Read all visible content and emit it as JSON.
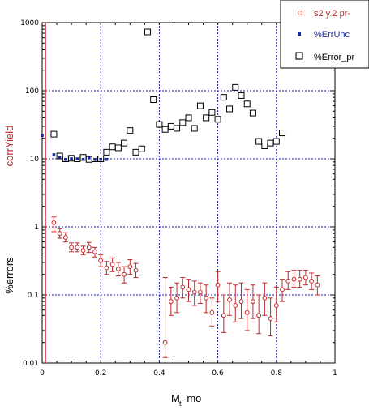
{
  "chart_data": {
    "type": "scatter",
    "xlabel_main": "M",
    "xlabel_sub": "t",
    "xlabel_rest": "-mo",
    "ylabel_top": "corrYield",
    "ylabel_bottom": "%errors",
    "xlim": [
      0,
      1
    ],
    "ylim": [
      0.01,
      1000
    ],
    "yscale": "log",
    "grid": true,
    "legend_position": "top-right",
    "xticks": [
      "0",
      "0.2",
      "0.4",
      "0.6",
      "0.8",
      "1"
    ],
    "yticks": [
      "0.01",
      "0.1",
      "1",
      "10",
      "100",
      "1000"
    ],
    "colors": {
      "series1": "#c0282a",
      "series2": "#1a2a9a",
      "series3": "#000000",
      "grid": "#1a1aaa",
      "vline": "#c0282a"
    },
    "series": [
      {
        "name": "s2 y.2 pr-",
        "marker": "open-circle",
        "x": [
          0.04,
          0.06,
          0.08,
          0.1,
          0.12,
          0.14,
          0.16,
          0.18,
          0.2,
          0.22,
          0.24,
          0.26,
          0.28,
          0.3,
          0.32,
          0.34,
          0.36,
          0.38,
          0.4,
          0.42,
          0.44,
          0.46,
          0.48,
          0.5,
          0.52,
          0.54,
          0.56,
          0.58,
          0.6,
          0.62,
          0.64,
          0.66,
          0.68,
          0.7,
          0.72,
          0.74,
          0.76,
          0.78,
          0.8,
          0.82,
          0.84,
          0.86,
          0.88,
          0.9,
          0.92,
          0.94,
          0.96,
          0.98
        ],
        "y": [
          1.15,
          0.8,
          0.7,
          0.5,
          0.5,
          0.45,
          0.5,
          0.43,
          0.32,
          0.25,
          0.28,
          0.24,
          0.2,
          0.26,
          0.23,
          null,
          null,
          null,
          null,
          0.02,
          0.08,
          0.09,
          0.13,
          0.12,
          0.11,
          0.11,
          0.09,
          0.055,
          0.14,
          0.05,
          0.085,
          0.07,
          0.08,
          0.055,
          0.08,
          0.05,
          0.09,
          0.045,
          0.07,
          0.12,
          0.16,
          0.17,
          0.17,
          0.18,
          0.16,
          0.14,
          null,
          null
        ],
        "err_lo": [
          0.85,
          0.68,
          0.6,
          0.43,
          0.43,
          0.39,
          0.42,
          0.36,
          0.26,
          0.2,
          0.22,
          0.19,
          0.15,
          0.2,
          0.18,
          null,
          null,
          null,
          null,
          0.012,
          0.05,
          0.055,
          0.09,
          0.08,
          0.07,
          0.075,
          0.055,
          0.035,
          0.08,
          0.028,
          0.05,
          0.04,
          0.045,
          0.03,
          0.045,
          0.027,
          0.05,
          0.025,
          0.04,
          0.08,
          0.12,
          0.13,
          0.13,
          0.14,
          0.12,
          0.1,
          null,
          null
        ],
        "err_hi": [
          1.4,
          0.94,
          0.82,
          0.58,
          0.58,
          0.52,
          0.59,
          0.5,
          0.39,
          0.31,
          0.35,
          0.3,
          0.26,
          0.33,
          0.29,
          null,
          null,
          null,
          null,
          0.18,
          0.13,
          0.15,
          0.18,
          0.17,
          0.16,
          0.15,
          0.14,
          0.09,
          0.22,
          0.1,
          0.15,
          0.14,
          0.15,
          0.12,
          0.14,
          0.1,
          0.15,
          0.09,
          0.13,
          0.17,
          0.22,
          0.23,
          0.23,
          0.23,
          0.21,
          0.19,
          null,
          null
        ]
      },
      {
        "name": "%ErrUnc",
        "marker": "filled-square",
        "x": [
          0.0,
          0.04,
          0.06,
          0.08,
          0.1,
          0.12,
          0.14,
          0.16,
          0.18,
          0.2,
          0.22
        ],
        "y": [
          22,
          11.5,
          10.5,
          9.8,
          10,
          10,
          9.8,
          10.3,
          9.8,
          9.8,
          9.8
        ]
      },
      {
        "name": "%Error_pr",
        "marker": "open-square",
        "x": [
          0.04,
          0.06,
          0.08,
          0.1,
          0.12,
          0.14,
          0.16,
          0.18,
          0.2,
          0.22,
          0.24,
          0.26,
          0.28,
          0.3,
          0.32,
          0.34,
          0.36,
          0.38,
          0.4,
          0.42,
          0.44,
          0.46,
          0.48,
          0.5,
          0.52,
          0.54,
          0.56,
          0.58,
          0.6,
          0.62,
          0.64,
          0.66,
          0.68,
          0.7,
          0.72,
          0.74,
          0.76,
          0.78,
          0.8,
          0.82,
          0.84,
          0.86,
          0.88,
          0.9,
          0.92,
          0.94,
          0.96,
          0.98
        ],
        "y": [
          23,
          11,
          10,
          10.2,
          10,
          10.5,
          9.8,
          10,
          10,
          12.5,
          15,
          14.5,
          17,
          26,
          12.5,
          14,
          730,
          74,
          32,
          27,
          30,
          28,
          34,
          40,
          28,
          60,
          40,
          48,
          38,
          80,
          54,
          112,
          85,
          64,
          47,
          18,
          15.5,
          17,
          18,
          24,
          null,
          null,
          null,
          null,
          null,
          null,
          null,
          null
        ]
      }
    ]
  }
}
